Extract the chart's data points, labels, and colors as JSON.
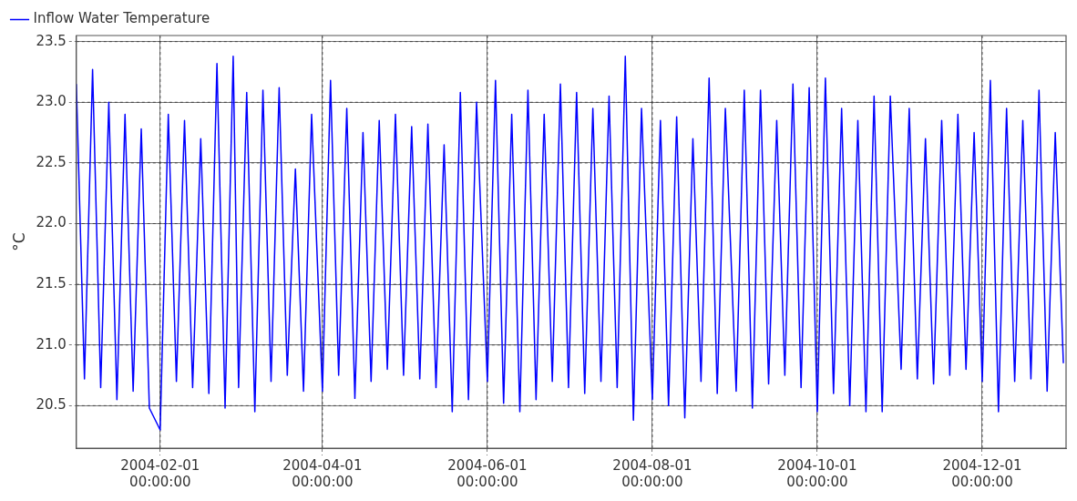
{
  "chart_data": {
    "type": "line",
    "ylabel": "°C",
    "xlim": [
      "2004-01-01",
      "2005-01-01"
    ],
    "ylim": [
      20.15,
      23.55
    ],
    "yticks": [
      20.5,
      {
        "value": 21,
        "label": "21.0"
      },
      21.5,
      {
        "value": 22,
        "label": "22.0"
      },
      22.5,
      {
        "value": 23,
        "label": "23.0"
      },
      23.5
    ],
    "xticks": [
      {
        "value": "2004-02-01",
        "label": "2004-02-01 00:00:00"
      },
      {
        "value": "2004-04-01",
        "label": "2004-04-01 00:00:00"
      },
      {
        "value": "2004-06-01",
        "label": "2004-06-01 00:00:00"
      },
      {
        "value": "2004-08-01",
        "label": "2004-08-01 00:00:00"
      },
      {
        "value": "2004-10-01",
        "label": "2004-10-01 00:00:00"
      },
      {
        "value": "2004-12-01",
        "label": "2004-12-01 00:00:00"
      }
    ],
    "grid": true,
    "legend": "top left",
    "marker": "none",
    "line_style": "solid",
    "x": [
      "2004-01-01",
      "2004-01-04",
      "2004-01-07",
      "2004-01-10",
      "2004-01-13",
      "2004-01-16",
      "2004-01-19",
      "2004-01-22",
      "2004-01-25",
      "2004-01-28",
      "2004-02-01",
      "2004-02-04",
      "2004-02-07",
      "2004-02-10",
      "2004-02-13",
      "2004-02-16",
      "2004-02-19",
      "2004-02-22",
      "2004-02-25",
      "2004-02-28",
      "2004-03-01",
      "2004-03-04",
      "2004-03-07",
      "2004-03-10",
      "2004-03-13",
      "2004-03-16",
      "2004-03-19",
      "2004-03-22",
      "2004-03-25",
      "2004-03-28",
      "2004-04-01",
      "2004-04-04",
      "2004-04-07",
      "2004-04-10",
      "2004-04-13",
      "2004-04-16",
      "2004-04-19",
      "2004-04-22",
      "2004-04-25",
      "2004-04-28",
      "2004-05-01",
      "2004-05-04",
      "2004-05-07",
      "2004-05-10",
      "2004-05-13",
      "2004-05-16",
      "2004-05-19",
      "2004-05-22",
      "2004-05-25",
      "2004-05-28",
      "2004-06-01",
      "2004-06-04",
      "2004-06-07",
      "2004-06-10",
      "2004-06-13",
      "2004-06-16",
      "2004-06-19",
      "2004-06-22",
      "2004-06-25",
      "2004-06-28",
      "2004-07-01",
      "2004-07-04",
      "2004-07-07",
      "2004-07-10",
      "2004-07-13",
      "2004-07-16",
      "2004-07-19",
      "2004-07-22",
      "2004-07-25",
      "2004-07-28",
      "2004-08-01",
      "2004-08-04",
      "2004-08-07",
      "2004-08-10",
      "2004-08-13",
      "2004-08-16",
      "2004-08-19",
      "2004-08-22",
      "2004-08-25",
      "2004-08-28",
      "2004-09-01",
      "2004-09-04",
      "2004-09-07",
      "2004-09-10",
      "2004-09-13",
      "2004-09-16",
      "2004-09-19",
      "2004-09-22",
      "2004-09-25",
      "2004-09-28",
      "2004-10-01",
      "2004-10-04",
      "2004-10-07",
      "2004-10-10",
      "2004-10-13",
      "2004-10-16",
      "2004-10-19",
      "2004-10-22",
      "2004-10-25",
      "2004-10-28",
      "2004-11-01",
      "2004-11-04",
      "2004-11-07",
      "2004-11-10",
      "2004-11-13",
      "2004-11-16",
      "2004-11-19",
      "2004-11-22",
      "2004-11-25",
      "2004-11-28",
      "2004-12-01",
      "2004-12-04",
      "2004-12-07",
      "2004-12-10",
      "2004-12-13",
      "2004-12-16",
      "2004-12-19",
      "2004-12-22",
      "2004-12-25",
      "2004-12-28",
      "2004-12-31"
    ],
    "series": [
      {
        "name": "Inflow Water Temperature",
        "color": "#0000ff",
        "values": [
          23.15,
          20.72,
          23.27,
          20.65,
          23.0,
          20.55,
          22.9,
          20.62,
          22.78,
          20.48,
          20.3,
          22.9,
          20.7,
          22.85,
          20.65,
          22.7,
          20.6,
          23.32,
          20.48,
          23.38,
          20.65,
          23.08,
          20.45,
          23.1,
          20.7,
          23.12,
          20.75,
          22.45,
          20.62,
          22.9,
          20.62,
          23.18,
          20.75,
          22.95,
          20.56,
          22.75,
          20.7,
          22.85,
          20.8,
          22.9,
          20.75,
          22.8,
          20.72,
          22.82,
          20.65,
          22.65,
          20.45,
          23.08,
          20.55,
          23.0,
          20.7,
          23.18,
          20.52,
          22.9,
          20.45,
          23.1,
          20.55,
          22.9,
          20.7,
          23.15,
          20.65,
          23.08,
          20.6,
          22.95,
          20.7,
          23.05,
          20.65,
          23.38,
          20.38,
          22.95,
          20.55,
          22.85,
          20.5,
          22.88,
          20.4,
          22.7,
          20.7,
          23.2,
          20.6,
          22.95,
          20.62,
          23.1,
          20.48,
          23.1,
          20.68,
          22.85,
          20.75,
          23.15,
          20.65,
          23.12,
          20.45,
          23.2,
          20.6,
          22.95,
          20.5,
          22.85,
          20.45,
          23.05,
          20.45,
          23.05,
          20.8,
          22.95,
          20.72,
          22.7,
          20.68,
          22.85,
          20.75,
          22.9,
          20.8,
          22.75,
          20.7,
          23.18,
          20.45,
          22.95,
          20.7,
          22.85,
          20.72,
          23.1,
          20.62,
          22.75,
          20.85
        ]
      }
    ]
  }
}
